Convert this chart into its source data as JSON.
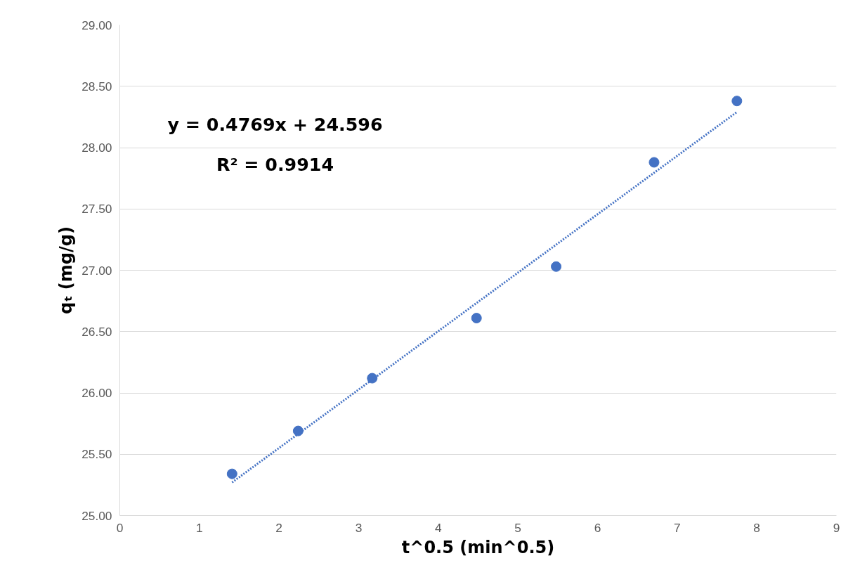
{
  "chart_data": {
    "type": "scatter",
    "xlabel": "t^0.5 (min^0.5)",
    "ylabel": "qₜ (mg/g)",
    "annotations": [
      "y = 0.4769x + 24.596",
      "R² = 0.9914"
    ],
    "series": [
      {
        "color": "#4472c4",
        "marker": "circle",
        "x": [
          1.41,
          2.24,
          3.17,
          4.48,
          5.48,
          6.71,
          7.75
        ],
        "values": [
          25.34,
          25.69,
          26.12,
          26.61,
          27.03,
          27.88,
          28.38
        ]
      },
      {
        "type": "line",
        "color": "#4472c4",
        "line_style": "dotted",
        "x": [
          1.41,
          7.75
        ],
        "values": [
          25.27,
          28.29
        ]
      }
    ],
    "xlim": [
      0,
      9
    ],
    "xticks": [
      0,
      1,
      2,
      3,
      4,
      5,
      6,
      7,
      8,
      9
    ],
    "ylim": [
      25,
      29
    ],
    "yticks": [
      {
        "value": 25,
        "label": "25.00"
      },
      {
        "value": 25.5,
        "label": "25.50"
      },
      {
        "value": 26,
        "label": "26.00"
      },
      {
        "value": 26.5,
        "label": "26.50"
      },
      {
        "value": 27,
        "label": "27.00"
      },
      {
        "value": 27.5,
        "label": "27.50"
      },
      {
        "value": 28,
        "label": "28.00"
      },
      {
        "value": 28.5,
        "label": "28.50"
      },
      {
        "value": 29,
        "label": "29.00"
      }
    ],
    "grid": "y"
  }
}
